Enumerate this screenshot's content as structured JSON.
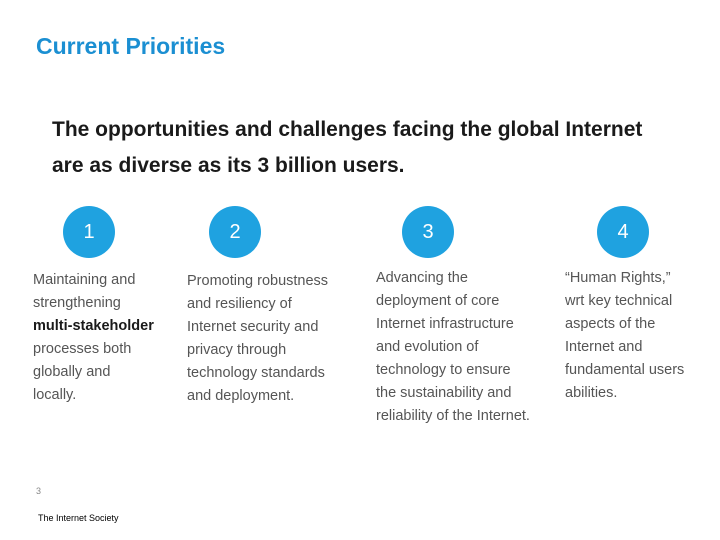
{
  "slide": {
    "title": "Current Priorities",
    "subtitle": "The opportunities and challenges facing the global Internet are as diverse as its 3 billion users.",
    "page_number": "3",
    "footer": "The Internet Society",
    "accent_color": "#1b8fd2",
    "circle_color": "#1fa2e0"
  },
  "priorities": [
    {
      "number": "1",
      "text_before": "Maintaining and strengthening ",
      "bold": "multi-stakeholder",
      "text_after": " processes both globally and locally."
    },
    {
      "number": "2",
      "text": "Promoting robustness and resiliency of Internet security and privacy through technology standards and deployment."
    },
    {
      "number": "3",
      "text": "Advancing the deployment of core Internet infrastructure and evolution of technology to ensure the sustainability and reliability of the Internet."
    },
    {
      "number": "4",
      "text": "“Human Rights,” wrt key technical aspects of the Internet and fundamental users abilities."
    }
  ]
}
